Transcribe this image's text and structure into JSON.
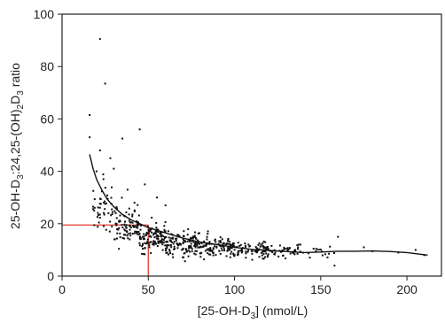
{
  "chart_data": {
    "type": "scatter",
    "title": "",
    "xlabel": "[25-OH-D3] (nmol/L)",
    "ylabel": "25-OH-D3:24,25-(OH)2D3 ratio",
    "xlim": [
      0,
      220
    ],
    "ylim": [
      0,
      100
    ],
    "x_ticks": [
      0,
      50,
      100,
      150,
      200
    ],
    "y_ticks": [
      0,
      20,
      40,
      60,
      80,
      100
    ],
    "grid": false,
    "legend": "none",
    "colors": {
      "points": "#111111",
      "fit_line": "#111111",
      "reference": "#e23a2e"
    },
    "reference_lines": {
      "x": 50,
      "y": 19.5
    },
    "fit_curve": [
      [
        16,
        46.5
      ],
      [
        18,
        41
      ],
      [
        20,
        37
      ],
      [
        23,
        33
      ],
      [
        26,
        29.5
      ],
      [
        30,
        26.5
      ],
      [
        35,
        23.5
      ],
      [
        40,
        21.5
      ],
      [
        45,
        20
      ],
      [
        50,
        18.5
      ],
      [
        60,
        16.5
      ],
      [
        70,
        14.5
      ],
      [
        80,
        13
      ],
      [
        90,
        12
      ],
      [
        100,
        11
      ],
      [
        110,
        10.2
      ],
      [
        120,
        9.8
      ],
      [
        130,
        9.4
      ],
      [
        140,
        9
      ],
      [
        150,
        9.2
      ],
      [
        160,
        9.5
      ],
      [
        170,
        9.5
      ],
      [
        180,
        9.6
      ],
      [
        190,
        9.4
      ],
      [
        200,
        9
      ],
      [
        212,
        8
      ]
    ],
    "outliers": [
      [
        22,
        90.5
      ],
      [
        25,
        73.5
      ],
      [
        16,
        61.5
      ],
      [
        45,
        56
      ],
      [
        35,
        52.5
      ],
      [
        16,
        53
      ],
      [
        22,
        48
      ],
      [
        28,
        45
      ],
      [
        30,
        41
      ],
      [
        24,
        37
      ],
      [
        38,
        33
      ],
      [
        20,
        40
      ],
      [
        42,
        28
      ],
      [
        55,
        30
      ],
      [
        60,
        27
      ],
      [
        48,
        35
      ],
      [
        158,
        4
      ],
      [
        160,
        15
      ],
      [
        175,
        11
      ],
      [
        180,
        9.5
      ],
      [
        195,
        9
      ],
      [
        205,
        10
      ],
      [
        210,
        8
      ]
    ],
    "clusters": [
      {
        "x_range": [
          18,
          30
        ],
        "y_center": 26,
        "y_spread": 8,
        "count": 45
      },
      {
        "x_range": [
          30,
          45
        ],
        "y_center": 19,
        "y_spread": 6,
        "count": 95
      },
      {
        "x_range": [
          45,
          60
        ],
        "y_center": 15,
        "y_spread": 5,
        "count": 120
      },
      {
        "x_range": [
          60,
          80
        ],
        "y_center": 12.5,
        "y_spread": 4,
        "count": 140
      },
      {
        "x_range": [
          80,
          100
        ],
        "y_center": 11,
        "y_spread": 3.5,
        "count": 110
      },
      {
        "x_range": [
          100,
          120
        ],
        "y_center": 10,
        "y_spread": 3,
        "count": 80
      },
      {
        "x_range": [
          120,
          140
        ],
        "y_center": 9.5,
        "y_spread": 2.5,
        "count": 45
      },
      {
        "x_range": [
          140,
          160
        ],
        "y_center": 9,
        "y_spread": 2.5,
        "count": 15
      }
    ],
    "random_seed": 7
  }
}
